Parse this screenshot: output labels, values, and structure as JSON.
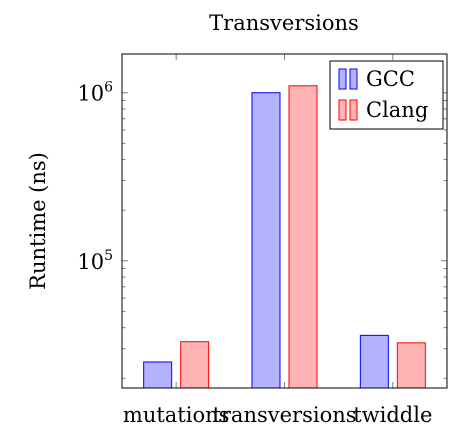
{
  "chart_data": {
    "type": "bar",
    "title": "Transversions",
    "xlabel": "",
    "ylabel": "Runtime (ns)",
    "categories": [
      "mutations",
      "transversions",
      "twiddle"
    ],
    "y_scale": "log",
    "ylim": [
      17500,
      1700000
    ],
    "y_ticks": [
      {
        "value": 100000,
        "base": "10",
        "exp": "5"
      },
      {
        "value": 1000000,
        "base": "10",
        "exp": "6"
      }
    ],
    "grid": false,
    "legend_position": "top-right",
    "series": [
      {
        "name": "GCC",
        "values": [
          25000,
          1000000,
          36000
        ],
        "fill": "#b3b3ff",
        "stroke": "#0000ff"
      },
      {
        "name": "Clang",
        "values": [
          33000,
          1100000,
          32500
        ],
        "fill": "#ffb3b3",
        "stroke": "#ff0000"
      }
    ]
  }
}
